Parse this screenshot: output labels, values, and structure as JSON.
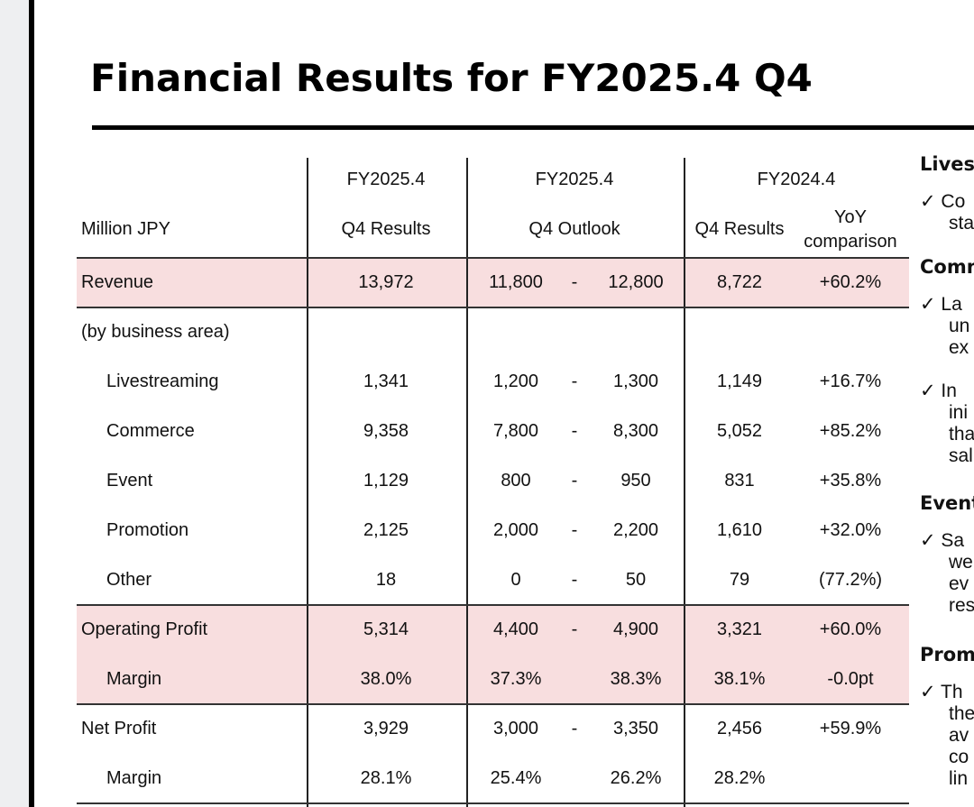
{
  "title": "Financial Results for FY2025.4 Q4",
  "header": {
    "unit": "Million JPY",
    "c1a": "FY2025.4",
    "c1b": "Q4 Results",
    "c2a": "FY2025.4",
    "c2b": "Q4 Outlook",
    "c3a": "FY2024.4",
    "c3b": "Q4 Results",
    "c4a": "YoY",
    "c4b": "comparison"
  },
  "rows": [
    {
      "label": "Revenue",
      "r": "13,972",
      "lo": "11,800",
      "dash": "-",
      "hi": "12,800",
      "py": "8,722",
      "yoy": "+60.2%"
    },
    {
      "label": "(by business area)"
    },
    {
      "label": "Livestreaming",
      "r": "1,341",
      "lo": "1,200",
      "dash": "-",
      "hi": "1,300",
      "py": "1,149",
      "yoy": "+16.7%"
    },
    {
      "label": "Commerce",
      "r": "9,358",
      "lo": "7,800",
      "dash": "-",
      "hi": "8,300",
      "py": "5,052",
      "yoy": "+85.2%"
    },
    {
      "label": "Event",
      "r": "1,129",
      "lo": "800",
      "dash": "-",
      "hi": "950",
      "py": "831",
      "yoy": "+35.8%"
    },
    {
      "label": "Promotion",
      "r": "2,125",
      "lo": "2,000",
      "dash": "-",
      "hi": "2,200",
      "py": "1,610",
      "yoy": "+32.0%"
    },
    {
      "label": "Other",
      "r": "18",
      "lo": "0",
      "dash": "-",
      "hi": "50",
      "py": "79",
      "yoy": "(77.2%)"
    },
    {
      "label": "Operating Profit",
      "r": "5,314",
      "lo": "4,400",
      "dash": "-",
      "hi": "4,900",
      "py": "3,321",
      "yoy": "+60.0%"
    },
    {
      "label": "Margin",
      "r": "38.0%",
      "lo": "37.3%",
      "hi": "38.3%",
      "py": "38.1%",
      "yoy": "-0.0pt"
    },
    {
      "label": "Net Profit",
      "r": "3,929",
      "lo": "3,000",
      "dash": "-",
      "hi": "3,350",
      "py": "2,456",
      "yoy": "+59.9%"
    },
    {
      "label": "Margin",
      "r": "28.1%",
      "lo": "25.4%",
      "hi": "26.2%",
      "py": "28.2%"
    }
  ],
  "side": {
    "h1": "Livest",
    "p1": [
      "✓ Co",
      "sta"
    ],
    "h2": "Comm",
    "p2": [
      "✓ La",
      "un",
      "ex"
    ],
    "p3": [
      "✓ In",
      "ini",
      "tha",
      "sal"
    ],
    "h3": "Event",
    "p4": [
      "✓ Sa",
      "we",
      "ev",
      "res"
    ],
    "h4": "Prom",
    "p5": [
      "✓ Th",
      "the",
      "av",
      "co",
      "lin"
    ]
  }
}
